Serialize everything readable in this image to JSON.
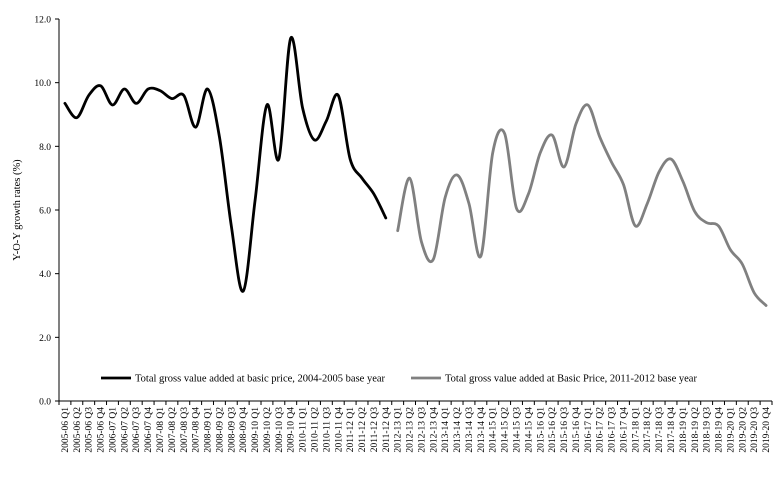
{
  "chart_data": {
    "type": "line",
    "title": "",
    "xlabel": "",
    "ylabel": "Y-O-Y growth rates (%)",
    "ylim": [
      0,
      12
    ],
    "yticks": [
      "0.0",
      "2.0",
      "4.0",
      "6.0",
      "8.0",
      "10.0",
      "12.0"
    ],
    "grid": false,
    "legend_position": "bottom-inside",
    "categories": [
      "2005-06 Q1",
      "2005-06 Q2",
      "2005-06 Q3",
      "2005-06 Q4",
      "2006-07 Q1",
      "2006-07 Q2",
      "2006-07 Q3",
      "2006-07 Q4",
      "2007-08 Q1",
      "2007-08 Q2",
      "2007-08 Q3",
      "2007-08 Q4",
      "2008-09 Q1",
      "2008-09 Q2",
      "2008-09 Q3",
      "2008-09 Q4",
      "2009-10 Q1",
      "2009-10 Q2",
      "2009-10 Q3",
      "2009-10 Q4",
      "2010-11 Q1",
      "2010-11 Q2",
      "2010-11 Q3",
      "2010-11 Q4",
      "2011-12 Q1",
      "2011-12 Q2",
      "2011-12 Q3",
      "2011-12 Q4",
      "2012-13 Q1",
      "2012-13 Q2",
      "2012-13 Q3",
      "2012-13 Q4",
      "2013-14 Q1",
      "2013-14 Q2",
      "2013-14 Q3",
      "2013-14 Q4",
      "2014-15 Q1",
      "2014-15 Q2",
      "2014-15 Q3",
      "2014-15 Q4",
      "2015-16 Q1",
      "2015-16 Q2",
      "2015-16 Q3",
      "2015-16 Q4",
      "2016-17 Q1",
      "2016-17 Q2",
      "2016-17 Q3",
      "2016-17 Q4",
      "2017-18 Q1",
      "2017-18 Q2",
      "2017-18 Q3",
      "2017-18 Q4",
      "2018-19 Q1",
      "2018-19 Q2",
      "2018-19 Q3",
      "2018-19 Q4",
      "2019-20 Q1",
      "2019-20 Q2",
      "2019-20 Q3",
      "2019-20 Q4"
    ],
    "series": [
      {
        "name": "Total gross value added at basic price, 2004-2005 base year",
        "color": "#000000",
        "values": [
          9.35,
          8.9,
          9.6,
          9.9,
          9.3,
          9.8,
          9.35,
          9.8,
          9.75,
          9.5,
          9.6,
          8.6,
          9.8,
          8.3,
          5.5,
          3.45,
          6.3,
          9.3,
          7.6,
          11.4,
          9.2,
          8.2,
          8.8,
          9.6,
          7.6,
          7.0,
          6.5,
          5.75,
          null,
          null,
          null,
          null,
          null,
          null,
          null,
          null,
          null,
          null,
          null,
          null,
          null,
          null,
          null,
          null,
          null,
          null,
          null,
          null,
          null,
          null,
          null,
          null,
          null,
          null,
          null,
          null,
          null,
          null,
          null,
          null
        ]
      },
      {
        "name": "Total gross value added at Basic Price, 2011-2012 base year",
        "color": "#808080",
        "values": [
          null,
          null,
          null,
          null,
          null,
          null,
          null,
          null,
          null,
          null,
          null,
          null,
          null,
          null,
          null,
          null,
          null,
          null,
          null,
          null,
          null,
          null,
          null,
          null,
          null,
          null,
          null,
          null,
          5.35,
          7.0,
          5.0,
          4.45,
          6.4,
          7.1,
          6.2,
          4.55,
          7.8,
          8.4,
          6.05,
          6.5,
          7.8,
          8.35,
          7.35,
          8.7,
          9.3,
          8.3,
          7.5,
          6.8,
          5.5,
          6.2,
          7.2,
          7.6,
          6.9,
          5.95,
          5.6,
          5.5,
          4.75,
          4.3,
          3.4,
          3.0
        ]
      }
    ]
  }
}
